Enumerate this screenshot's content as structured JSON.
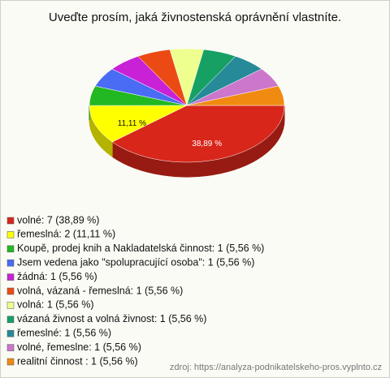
{
  "chart_data": {
    "type": "pie3d",
    "title": "Uveďte prosím, jaká živnostenská oprávnění vlastníte.",
    "categories": [
      "volné: 7 (38,89 %)",
      "řemeslná: 2 (11,11 %)",
      "Koupě, prodej knih a Nakladatelská činnost: 1 (5,56 %)",
      "Jsem vedena jako \"spolupracující osoba\": 1 (5,56 %)",
      "žádná: 1 (5,56 %)",
      "volná, vázaná - řemeslná: 1 (5,56 %)",
      "volná: 1 (5,56 %)",
      "vázaná živnost a volná živnost: 1 (5,56 %)",
      "řemeslné: 1 (5,56 %)",
      "volné, řemeslne: 1 (5,56 %)",
      "realitní činnost : 1 (5,56 %)"
    ],
    "values": [
      38.89,
      11.11,
      5.56,
      5.56,
      5.56,
      5.56,
      5.56,
      5.56,
      5.56,
      5.56,
      5.56
    ],
    "value_labels": [
      "38,89 %",
      "11,11 %",
      null,
      null,
      null,
      null,
      null,
      null,
      null,
      null,
      null
    ],
    "colors": [
      "#d8261a",
      "#ffff00",
      "#22b822",
      "#4a6cf4",
      "#c821d6",
      "#ec4a14",
      "#eeff90",
      "#16a064",
      "#268a98",
      "#cc77cc",
      "#f08a10"
    ],
    "source": "zdroj: https://analyza-podnikatelskeho-pros.vyplnto.cz"
  }
}
